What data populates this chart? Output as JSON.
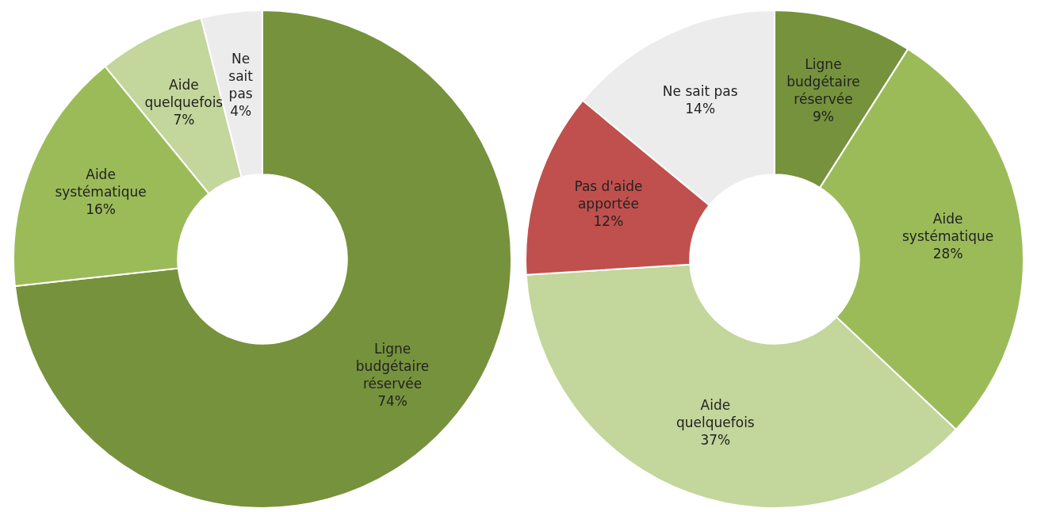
{
  "chart_data": [
    {
      "type": "donut",
      "categories": [
        "Ligne budgétaire réservée",
        "Aide systématique",
        "Aide quelquefois",
        "Ne sait pas"
      ],
      "values": [
        74,
        16,
        7,
        4
      ],
      "colors": [
        "#76923c",
        "#9bbb59",
        "#c3d69b",
        "#ececec"
      ],
      "value_labels": [
        "74%",
        "16%",
        "7%",
        "4%"
      ]
    },
    {
      "type": "donut",
      "categories": [
        "Ligne budgétaire réservée",
        "Aide systématique",
        "Aide quelquefois",
        "Pas d'aide apportée",
        "Ne sait pas"
      ],
      "values": [
        9,
        28,
        37,
        12,
        14
      ],
      "colors": [
        "#76923c",
        "#9bbb59",
        "#c3d69b",
        "#c0504d",
        "#ececec"
      ],
      "value_labels": [
        "9%",
        "28%",
        "37%",
        "12%",
        "14%"
      ]
    }
  ]
}
